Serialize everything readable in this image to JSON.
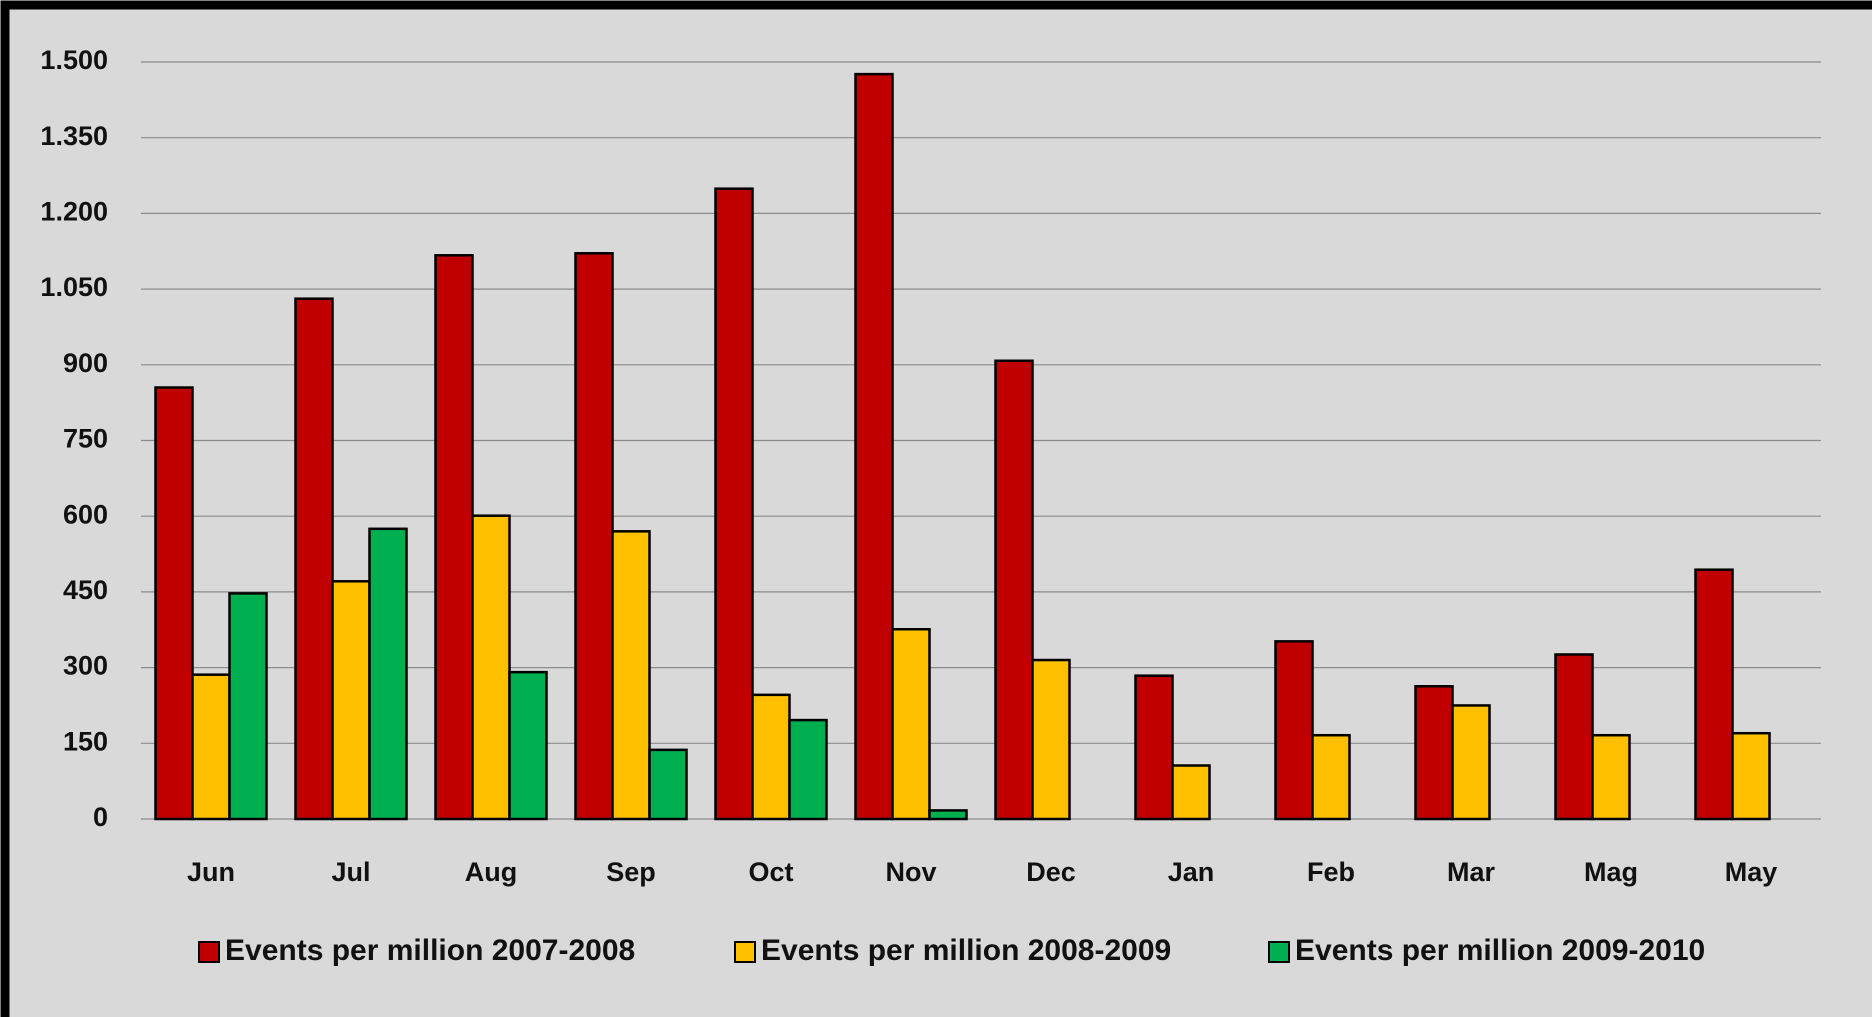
{
  "chart_data": {
    "type": "bar",
    "categories": [
      "Jun",
      "Jul",
      "Aug",
      "Sep",
      "Oct",
      "Nov",
      "Dec",
      "Jan",
      "Feb",
      "Mar",
      "Mag",
      "May"
    ],
    "series": [
      {
        "name": "Events per million 2007-2008",
        "color": "#c00000",
        "values": [
          855,
          1031,
          1117,
          1121,
          1249,
          1476,
          908,
          284,
          352,
          263,
          326,
          494
        ]
      },
      {
        "name": "Events per million 2008-2009",
        "color": "#ffc000",
        "values": [
          286,
          471,
          601,
          570,
          246,
          376,
          315,
          106,
          166,
          225,
          166,
          170
        ]
      },
      {
        "name": "Events per million 2009-2010",
        "color": "#00b050",
        "values": [
          447,
          575,
          291,
          137,
          196,
          17,
          null,
          null,
          null,
          null,
          null,
          null
        ]
      }
    ],
    "ylim": [
      0,
      1500
    ],
    "yticks": [
      0,
      150,
      300,
      450,
      600,
      750,
      900,
      {
        "value": 1050,
        "label": "1.050"
      },
      {
        "value": 1200,
        "label": "1.200"
      },
      {
        "value": 1350,
        "label": "1.350"
      },
      {
        "value": 1500,
        "label": "1.500"
      }
    ],
    "grid": true,
    "legend": "bottom"
  }
}
